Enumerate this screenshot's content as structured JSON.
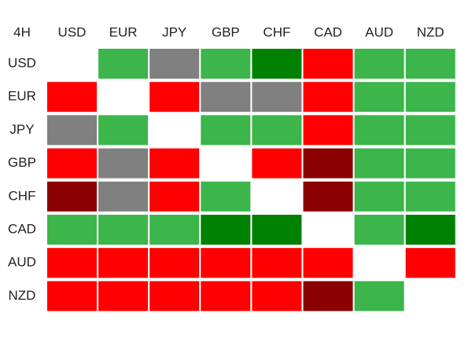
{
  "table": {
    "corner": "4H",
    "columns": [
      "USD",
      "EUR",
      "JPY",
      "GBP",
      "CHF",
      "CAD",
      "AUD",
      "NZD"
    ],
    "rows": [
      {
        "label": "USD",
        "cells": [
          null,
          "#3cb54b",
          "#808080",
          "#3cb54b",
          "#008000",
          "#ff0000",
          "#3cb54b",
          "#3cb54b"
        ]
      },
      {
        "label": "EUR",
        "cells": [
          "#ff0000",
          null,
          "#ff0000",
          "#808080",
          "#808080",
          "#ff0000",
          "#3cb54b",
          "#3cb54b"
        ]
      },
      {
        "label": "JPY",
        "cells": [
          "#808080",
          "#3cb54b",
          null,
          "#3cb54b",
          "#3cb54b",
          "#ff0000",
          "#3cb54b",
          "#3cb54b"
        ]
      },
      {
        "label": "GBP",
        "cells": [
          "#ff0000",
          "#808080",
          "#ff0000",
          null,
          "#ff0000",
          "#8b0000",
          "#3cb54b",
          "#3cb54b"
        ]
      },
      {
        "label": "CHF",
        "cells": [
          "#8b0000",
          "#808080",
          "#ff0000",
          "#3cb54b",
          null,
          "#8b0000",
          "#3cb54b",
          "#3cb54b"
        ]
      },
      {
        "label": "CAD",
        "cells": [
          "#3cb54b",
          "#3cb54b",
          "#3cb54b",
          "#008000",
          "#008000",
          null,
          "#3cb54b",
          "#008000"
        ]
      },
      {
        "label": "AUD",
        "cells": [
          "#ff0000",
          "#ff0000",
          "#ff0000",
          "#ff0000",
          "#ff0000",
          "#ff0000",
          null,
          "#ff0000"
        ]
      },
      {
        "label": "NZD",
        "cells": [
          "#ff0000",
          "#ff0000",
          "#ff0000",
          "#ff0000",
          "#ff0000",
          "#8b0000",
          "#3cb54b",
          null
        ]
      }
    ]
  }
}
